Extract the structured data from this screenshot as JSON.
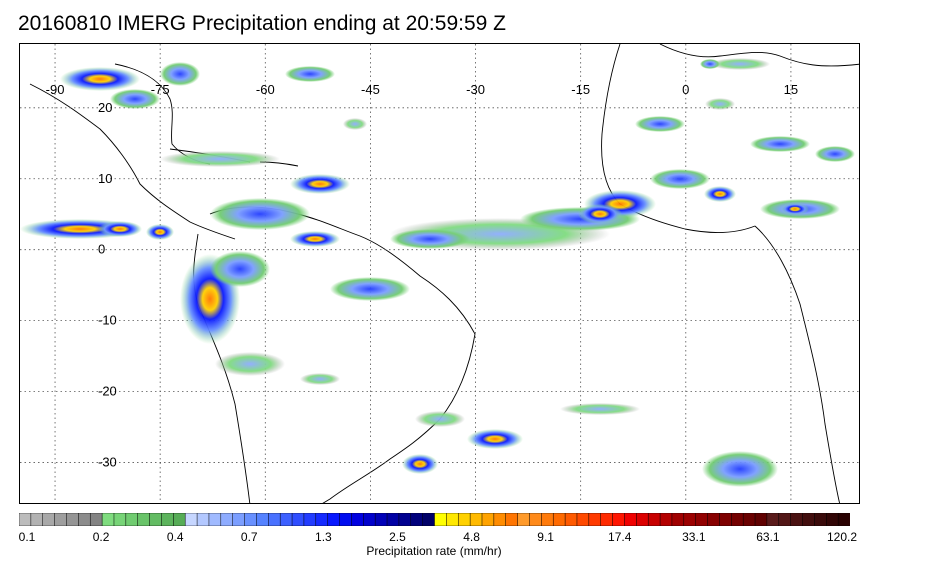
{
  "title": "20160810 IMERG Precipitation ending at 20:59:59 Z",
  "map": {
    "lon_min": -95,
    "lon_max": 25,
    "lat_min": -36,
    "lat_max": 29,
    "lon_labels": [
      "-90",
      "-75",
      "-60",
      "-45",
      "-30",
      "-15",
      "0",
      "15"
    ],
    "lon_values": [
      -90,
      -75,
      -60,
      -45,
      -30,
      -15,
      0,
      15
    ],
    "lat_labels": [
      "20",
      "10",
      "0",
      "-10",
      "-20",
      "-30"
    ],
    "lat_values": [
      20,
      10,
      0,
      -10,
      -20,
      -30
    ],
    "grid": true,
    "grid_style": "dotted"
  },
  "colorbar": {
    "label": "Precipitation rate (mm/hr)",
    "tick_labels": [
      "0.1",
      "0.2",
      "0.4",
      "0.7",
      "1.3",
      "2.5",
      "4.8",
      "9.1",
      "17.4",
      "33.1",
      "63.1",
      "120.2"
    ],
    "colors": [
      "#bcbcbc",
      "#b2b2b2",
      "#a8a8a8",
      "#9e9e9e",
      "#959595",
      "#8c8c8c",
      "#838383",
      "#7fdc7f",
      "#77d477",
      "#70cc70",
      "#69c469",
      "#63bc63",
      "#5cb45c",
      "#56ac56",
      "#c6d6ff",
      "#b3c8ff",
      "#a0baff",
      "#8eacff",
      "#7b9eff",
      "#6890ff",
      "#5582ff",
      "#4a72ff",
      "#3d60ff",
      "#2f4eff",
      "#223cff",
      "#152aff",
      "#0818ff",
      "#000cf0",
      "#0000e0",
      "#0000cc",
      "#0000b8",
      "#0000a4",
      "#000090",
      "#00007c",
      "#000068",
      "#ffff00",
      "#ffe800",
      "#ffd100",
      "#ffba00",
      "#ffa300",
      "#ff8c00",
      "#ff7500",
      "#ff9a2a",
      "#ff8a1a",
      "#ff7a0a",
      "#ff6a00",
      "#ff5a00",
      "#ff4a00",
      "#ff3a00",
      "#ff2a00",
      "#ff1500",
      "#f00000",
      "#dc0000",
      "#c80000",
      "#b40000",
      "#a00000",
      "#9c0000",
      "#920000",
      "#880000",
      "#7e0000",
      "#740000",
      "#6a0000",
      "#600000",
      "#5a1a1a",
      "#521616",
      "#4a1212",
      "#420e0e",
      "#3a0a0a",
      "#320606",
      "#2a0202"
    ]
  }
}
